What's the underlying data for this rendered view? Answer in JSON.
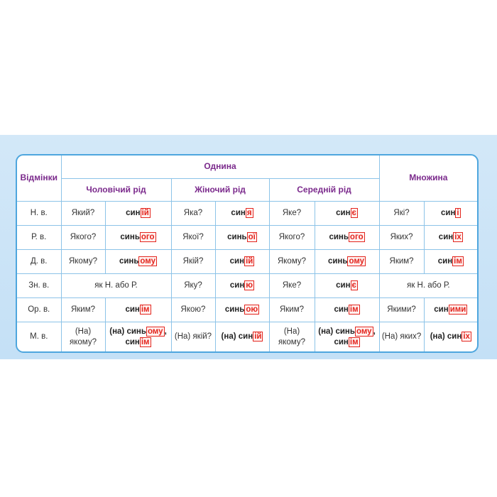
{
  "table": {
    "header": {
      "case": "Відмінки",
      "singular": "Однина",
      "plural": "Множина",
      "genders": [
        "Чоловічий рід",
        "Жіночий рід",
        "Середній рід"
      ]
    },
    "rows": [
      {
        "case": "Н. в.",
        "cells": [
          {
            "question": "Який?",
            "forms": [
              {
                "stem": "син",
                "ending": "ій"
              }
            ]
          },
          {
            "question": "Яка?",
            "forms": [
              {
                "stem": "син",
                "ending": "я"
              }
            ]
          },
          {
            "question": "Яке?",
            "forms": [
              {
                "stem": "син",
                "ending": "є"
              }
            ]
          },
          {
            "question": "Які?",
            "forms": [
              {
                "stem": "син",
                "ending": "і"
              }
            ]
          }
        ]
      },
      {
        "case": "Р. в.",
        "cells": [
          {
            "question": "Якого?",
            "forms": [
              {
                "stem": "синь",
                "ending": "ого"
              }
            ]
          },
          {
            "question": "Якої?",
            "forms": [
              {
                "stem": "синь",
                "ending": "ої"
              }
            ]
          },
          {
            "question": "Якого?",
            "forms": [
              {
                "stem": "синь",
                "ending": "ого"
              }
            ]
          },
          {
            "question": "Яких?",
            "forms": [
              {
                "stem": "син",
                "ending": "іх"
              }
            ]
          }
        ]
      },
      {
        "case": "Д. в.",
        "cells": [
          {
            "question": "Якому?",
            "forms": [
              {
                "stem": "синь",
                "ending": "ому"
              }
            ]
          },
          {
            "question": "Якій?",
            "forms": [
              {
                "stem": "син",
                "ending": "ій"
              }
            ]
          },
          {
            "question": "Якому?",
            "forms": [
              {
                "stem": "синь",
                "ending": "ому"
              }
            ]
          },
          {
            "question": "Яким?",
            "forms": [
              {
                "stem": "син",
                "ending": "ім"
              }
            ]
          }
        ]
      },
      {
        "case": "Зн. в.",
        "cells": [
          {
            "merged": "як Н. або Р."
          },
          {
            "question": "Яку?",
            "forms": [
              {
                "stem": "син",
                "ending": "ю"
              }
            ]
          },
          {
            "question": "Яке?",
            "forms": [
              {
                "stem": "син",
                "ending": "є"
              }
            ]
          },
          {
            "merged": "як Н. або Р."
          }
        ]
      },
      {
        "case": "Ор. в.",
        "cells": [
          {
            "question": "Яким?",
            "forms": [
              {
                "stem": "син",
                "ending": "ім"
              }
            ]
          },
          {
            "question": "Якою?",
            "forms": [
              {
                "stem": "синь",
                "ending": "ою"
              }
            ]
          },
          {
            "question": "Яким?",
            "forms": [
              {
                "stem": "син",
                "ending": "ім"
              }
            ]
          },
          {
            "question": "Якими?",
            "forms": [
              {
                "stem": "син",
                "ending": "ими"
              }
            ]
          }
        ]
      },
      {
        "case": "М. в.",
        "cells": [
          {
            "question": "(На) якому?",
            "forms": [
              {
                "prefix": "(на)",
                "stem": "синь",
                "ending": "ому",
                "suffix": ","
              },
              {
                "stem": "син",
                "ending": "ім"
              }
            ]
          },
          {
            "question": "(На) якій?",
            "forms": [
              {
                "prefix": "(на)",
                "stem": "син",
                "ending": "ій"
              }
            ]
          },
          {
            "question": "(На) якому?",
            "forms": [
              {
                "prefix": "(на)",
                "stem": "синь",
                "ending": "ому",
                "suffix": ","
              },
              {
                "stem": "син",
                "ending": "ім"
              }
            ]
          },
          {
            "question": "(На) яких?",
            "forms": [
              {
                "prefix": "(на)",
                "stem": "син",
                "ending": "іх"
              }
            ]
          }
        ]
      }
    ]
  }
}
